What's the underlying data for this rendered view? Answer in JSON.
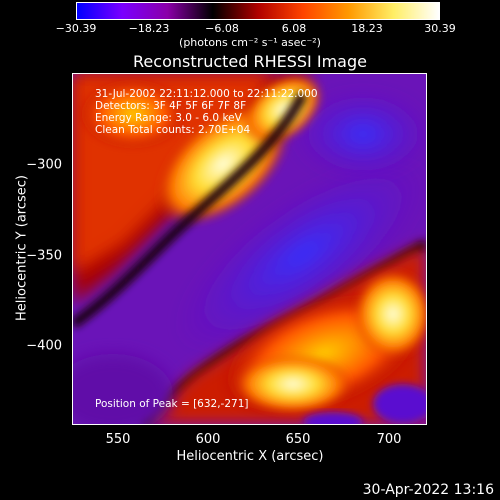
{
  "colorbar": {
    "ticks": [
      "−30.39",
      "−18.23",
      "−6.08",
      "6.08",
      "18.23",
      "30.39"
    ],
    "units_text": "(photons cm⁻² s⁻¹ asec⁻²)",
    "colors": [
      "#0000ff",
      "#7a00ff",
      "#8a00a8",
      "#000000",
      "#b00000",
      "#ff4400",
      "#ff9900",
      "#ffee66",
      "#ffffff"
    ]
  },
  "title": "Reconstructed RHESSI Image",
  "annotations": {
    "line1": "31-Jul-2002 22:11:12.000 to 22:11:22.000",
    "line2": "Detectors: 3F 4F 5F 6F 7F 8F",
    "line3": "Energy Range: 3.0 - 6.0 keV",
    "line4": "Clean     Total counts: 2.70E+04",
    "peak": "Position of Peak = [632,-271]"
  },
  "axes": {
    "xlabel": "Heliocentric X (arcsec)",
    "ylabel": "Heliocentric Y (arcsec)",
    "xticks": [
      "550",
      "600",
      "650",
      "700"
    ],
    "yticks": [
      "−300",
      "−350",
      "−400"
    ]
  },
  "datestamp": "30-Apr-2022 13:16"
}
